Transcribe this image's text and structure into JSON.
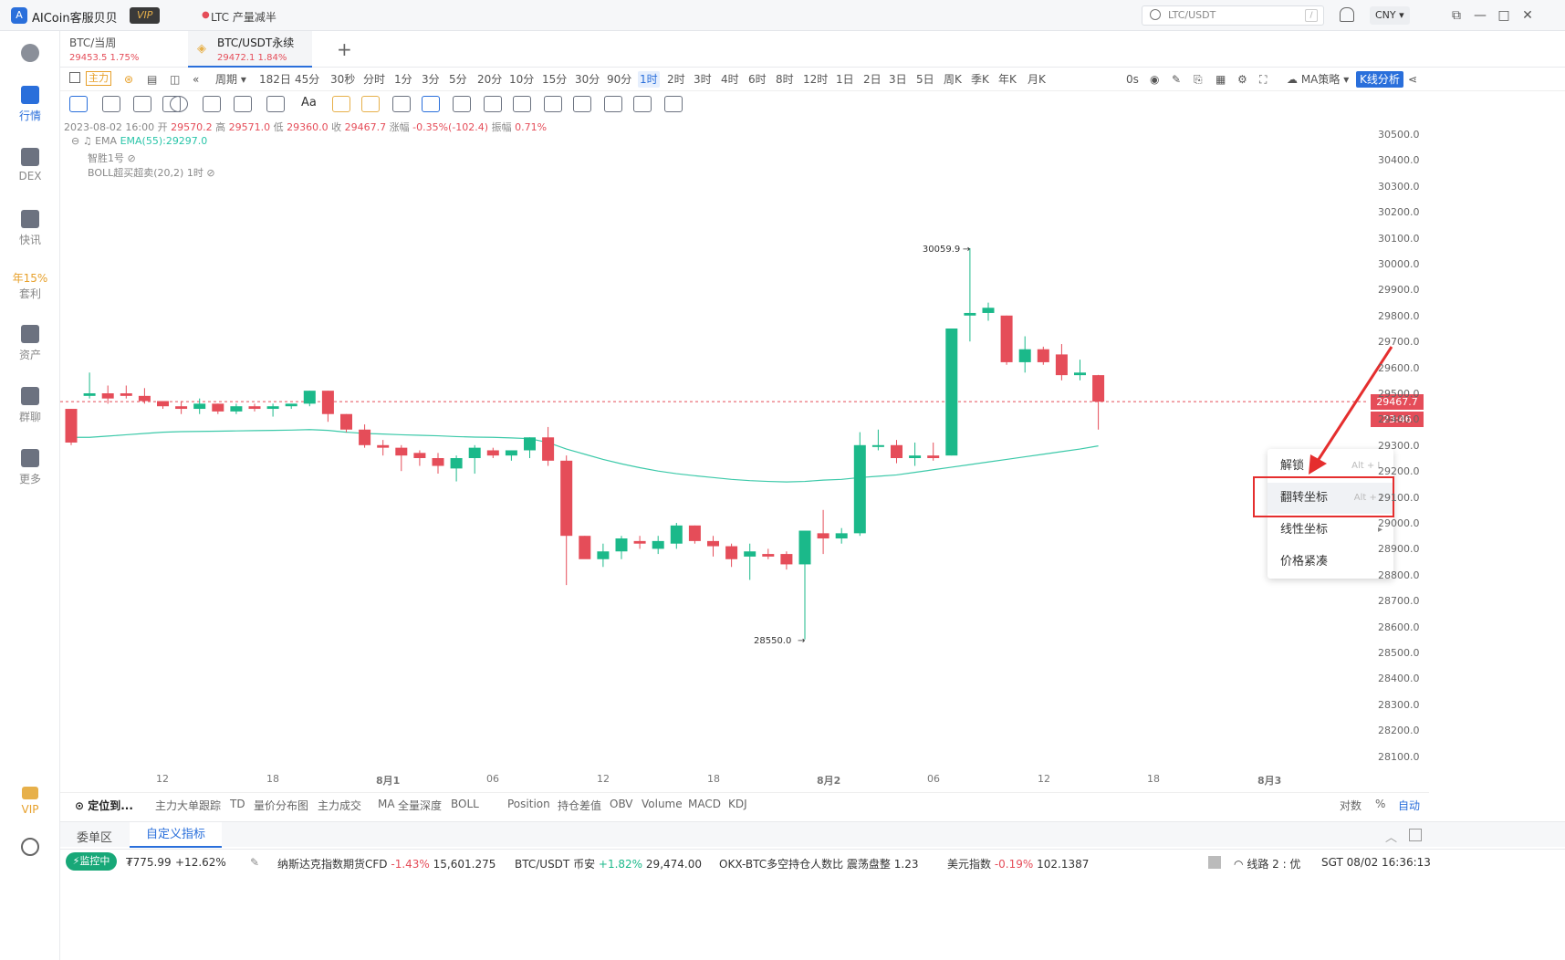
{
  "titlebar": {
    "app_name": "AICoin客服贝贝",
    "vip": "VIP",
    "news": "LTC 产量减半",
    "search_placeholder": "LTC/USDT",
    "search_shortcut": "/",
    "currency": "CNY"
  },
  "sidebar": [
    {
      "label": "",
      "icon": "globe-icon"
    },
    {
      "label": "行情",
      "icon": "chart-bar-icon"
    },
    {
      "label": "DEX",
      "icon": "dex-icon"
    },
    {
      "label": "快讯",
      "icon": "news-icon"
    },
    {
      "label": "套利",
      "sub": "年15%",
      "icon": "arbitrage-icon"
    },
    {
      "label": "资产",
      "icon": "wallet-icon"
    },
    {
      "label": "群聊",
      "icon": "chat-icon"
    },
    {
      "label": "更多",
      "icon": "grid-icon"
    },
    {
      "label": "VIP",
      "icon": "vip-icon"
    },
    {
      "label": "",
      "icon": "settings-icon"
    }
  ],
  "tabs": [
    {
      "title": "BTC/当周",
      "price": "29453.5",
      "change": "1.75%"
    },
    {
      "title": "BTC/USDT永续",
      "price": "29472.1",
      "change": "1.84%"
    }
  ],
  "periodbar": {
    "main_label": "主力",
    "period_label": "周期",
    "periods": [
      "182日",
      "45分",
      "30秒",
      "分时",
      "1分",
      "3分",
      "5分",
      "20分",
      "10分",
      "15分",
      "30分",
      "90分",
      "1时",
      "2时",
      "3时",
      "4时",
      "6时",
      "8时",
      "12时",
      "1日",
      "2日",
      "3日",
      "5日",
      "周K",
      "季K",
      "年K",
      "月K"
    ],
    "active": "1时",
    "countdown": "0s",
    "strategy": "MA策略",
    "analysis": "K线分析"
  },
  "ohlc": {
    "date": "2023-08-02 16:00",
    "open_label": "开",
    "open": "29570.2",
    "high_label": "高",
    "high": "29571.0",
    "low_label": "低",
    "low": "29360.0",
    "close_label": "收",
    "close": "29467.7",
    "change_label": "涨幅",
    "change": "-0.35%(-102.4)",
    "amp_label": "振幅",
    "amp": "0.71%"
  },
  "indicators": {
    "ema_name": "EMA",
    "ema_value": "EMA(55):29297.0",
    "zs": "智胜1号",
    "boll": "BOLL超买超卖(20,2) 1时"
  },
  "price_axis": [
    "30500.0",
    "30400.0",
    "30300.0",
    "30200.0",
    "30100.0",
    "30000.0",
    "29900.0",
    "29800.0",
    "29700.0",
    "29600.0",
    "29500.0",
    "29400.0",
    "29300.0",
    "29200.0",
    "29100.0",
    "29000.0",
    "28900.0",
    "28800.0",
    "28700.0",
    "28600.0",
    "28500.0",
    "28400.0",
    "28300.0",
    "28200.0",
    "28100.0"
  ],
  "price_label": "29467.7",
  "time_label": "23:46",
  "high_marker": "30059.9",
  "low_marker": "28550.0",
  "time_axis": [
    "12",
    "18",
    "8月1",
    "06",
    "12",
    "18",
    "8月2",
    "06",
    "12",
    "18",
    "8月3"
  ],
  "context_menu": [
    {
      "label": "解锁",
      "shortcut": "Alt + L"
    },
    {
      "label": "翻转坐标",
      "shortcut": "Alt + I"
    },
    {
      "label": "线性坐标",
      "shortcut": ""
    },
    {
      "label": "价格紧凑",
      "shortcut": ""
    }
  ],
  "indbar": {
    "locate": "定位到...",
    "items": [
      "主力大单跟踪",
      "TD",
      "量价分布图",
      "主力成交",
      "MA",
      "全量深度",
      "BOLL"
    ],
    "items2": [
      "Position",
      "持仓差值",
      "OBV",
      "Volume",
      "MACD",
      "KDJ"
    ],
    "right": [
      "对数",
      "%",
      "自动"
    ]
  },
  "bottomtabs": [
    "委单区",
    "自定义指标"
  ],
  "statusbar": {
    "monitor": "监控中",
    "asset": "₮775.99",
    "asset_change": "+12.62%",
    "t1_name": "纳斯达克指数期货CFD",
    "t1_change": "-1.43%",
    "t1_value": "15,601.275",
    "t2_name": "BTC/USDT 币安",
    "t2_change": "+1.82%",
    "t2_value": "29,474.00",
    "t3_name": "OKX-BTC多空持仓人数比",
    "t3_state": "震荡盘整",
    "t3_value": "1.23",
    "t4_name": "美元指数",
    "t4_change": "-0.19%",
    "t4_value": "102.1387",
    "line": "线路 2 : 优",
    "clock": "SGT 08/02 16:36:13"
  },
  "chart_data": {
    "type": "candlestick",
    "interval": "1时",
    "ylim": [
      28050,
      30560
    ],
    "candles": [
      [
        29440,
        29440,
        29300,
        29310
      ],
      [
        29490,
        29580,
        29480,
        29500
      ],
      [
        29500,
        29530,
        29460,
        29480
      ],
      [
        29500,
        29530,
        29480,
        29490
      ],
      [
        29490,
        29520,
        29460,
        29470
      ],
      [
        29470,
        29470,
        29440,
        29450
      ],
      [
        29450,
        29470,
        29420,
        29440
      ],
      [
        29440,
        29480,
        29420,
        29460
      ],
      [
        29460,
        29460,
        29420,
        29430
      ],
      [
        29430,
        29460,
        29420,
        29450
      ],
      [
        29450,
        29460,
        29430,
        29440
      ],
      [
        29440,
        29460,
        29410,
        29450
      ],
      [
        29450,
        29460,
        29440,
        29460
      ],
      [
        29460,
        29510,
        29450,
        29510
      ],
      [
        29510,
        29510,
        29390,
        29420
      ],
      [
        29420,
        29420,
        29350,
        29360
      ],
      [
        29360,
        29380,
        29290,
        29300
      ],
      [
        29300,
        29320,
        29260,
        29290
      ],
      [
        29290,
        29300,
        29200,
        29260
      ],
      [
        29270,
        29280,
        29220,
        29250
      ],
      [
        29250,
        29270,
        29190,
        29220
      ],
      [
        29210,
        29260,
        29160,
        29250
      ],
      [
        29250,
        29300,
        29190,
        29290
      ],
      [
        29280,
        29290,
        29250,
        29260
      ],
      [
        29260,
        29280,
        29240,
        29280
      ],
      [
        29280,
        29330,
        29250,
        29330
      ],
      [
        29330,
        29370,
        29220,
        29240
      ],
      [
        29240,
        29260,
        28760,
        28950
      ],
      [
        28950,
        28950,
        28880,
        28860
      ],
      [
        28860,
        28920,
        28830,
        28890
      ],
      [
        28890,
        28950,
        28860,
        28940
      ],
      [
        28930,
        28950,
        28900,
        28920
      ],
      [
        28900,
        28950,
        28880,
        28930
      ],
      [
        28920,
        29000,
        28900,
        28990
      ],
      [
        28990,
        28990,
        28920,
        28930
      ],
      [
        28930,
        28950,
        28870,
        28910
      ],
      [
        28910,
        28920,
        28830,
        28860
      ],
      [
        28870,
        28920,
        28780,
        28890
      ],
      [
        28880,
        28900,
        28860,
        28870
      ],
      [
        28880,
        28890,
        28820,
        28840
      ],
      [
        28840,
        28970,
        28550,
        28970
      ],
      [
        28960,
        29050,
        28880,
        28940
      ],
      [
        28940,
        28980,
        28920,
        28960
      ],
      [
        28960,
        29350,
        28950,
        29300
      ],
      [
        29300,
        29360,
        29280,
        29300
      ],
      [
        29300,
        29320,
        29230,
        29250
      ],
      [
        29250,
        29310,
        29220,
        29260
      ],
      [
        29260,
        29310,
        29240,
        29250
      ],
      [
        29260,
        29750,
        29260,
        29750
      ],
      [
        29800,
        30060,
        29700,
        29810
      ],
      [
        29810,
        29850,
        29780,
        29830
      ],
      [
        29800,
        29800,
        29610,
        29620
      ],
      [
        29620,
        29720,
        29580,
        29670
      ],
      [
        29670,
        29680,
        29610,
        29620
      ],
      [
        29650,
        29690,
        29550,
        29570
      ],
      [
        29570,
        29630,
        29550,
        29580
      ],
      [
        29570,
        29571,
        29360,
        29468
      ]
    ],
    "ema55": [
      29330,
      29330,
      29335,
      29340,
      29345,
      29350,
      29352,
      29353,
      29354,
      29355,
      29356,
      29357,
      29358,
      29360,
      29357,
      29350,
      29345,
      29343,
      29340,
      29338,
      29336,
      29333,
      29331,
      29330,
      29328,
      29325,
      29310,
      29285,
      29265,
      29245,
      29228,
      29213,
      29200,
      29190,
      29182,
      29175,
      29168,
      29163,
      29160,
      29158,
      29160,
      29165,
      29168,
      29175,
      29180,
      29185,
      29195,
      29205,
      29215,
      29225,
      29235,
      29245,
      29255,
      29265,
      29275,
      29285,
      29297
    ]
  }
}
